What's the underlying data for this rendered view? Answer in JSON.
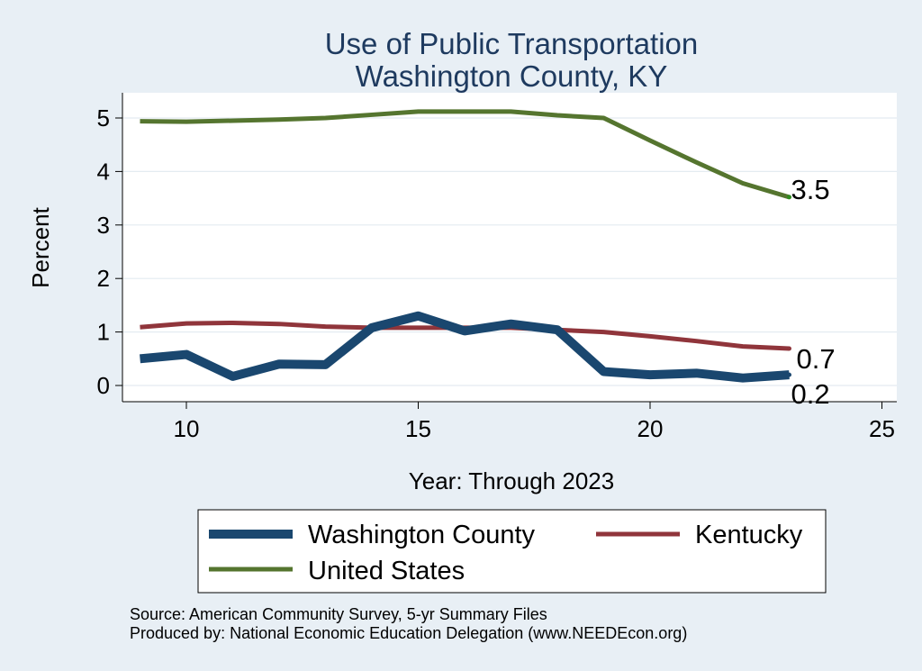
{
  "chart_data": {
    "type": "line",
    "title": [
      "Use of Public Transportation",
      "Washington County, KY"
    ],
    "xlabel": "Year: Through 2023",
    "ylabel": "Percent",
    "xlim": [
      9,
      25
    ],
    "ylim": [
      0,
      5.2
    ],
    "xticks": [
      10,
      15,
      20,
      25
    ],
    "yticks": [
      0,
      1,
      2,
      3,
      4,
      5
    ],
    "grid": true,
    "legend_position": "bottom",
    "x": [
      9,
      10,
      11,
      12,
      13,
      14,
      15,
      16,
      17,
      18,
      19,
      20,
      21,
      22,
      23
    ],
    "series": [
      {
        "name": "Washington County",
        "color": "#1a476f",
        "values": [
          0.5,
          0.58,
          0.17,
          0.4,
          0.39,
          1.08,
          1.3,
          1.02,
          1.15,
          1.04,
          0.26,
          0.2,
          0.23,
          0.14,
          0.2
        ],
        "end_label": "0.2"
      },
      {
        "name": "Kentucky",
        "color": "#90353b",
        "values": [
          1.09,
          1.16,
          1.17,
          1.15,
          1.1,
          1.08,
          1.08,
          1.08,
          1.08,
          1.04,
          1.0,
          0.92,
          0.83,
          0.73,
          0.69
        ],
        "end_label": "0.7"
      },
      {
        "name": "United States",
        "color": "#55752f",
        "values": [
          4.94,
          4.93,
          4.95,
          4.97,
          5.0,
          5.06,
          5.12,
          5.12,
          5.12,
          5.05,
          5.0,
          4.58,
          4.17,
          3.78,
          3.52
        ],
        "end_label": "3.5"
      }
    ]
  },
  "footer": {
    "source": "Source: American Community Survey, 5-yr Summary Files",
    "produced": "Produced by: National Economic Education Delegation (www.NEEDEcon.org)"
  }
}
